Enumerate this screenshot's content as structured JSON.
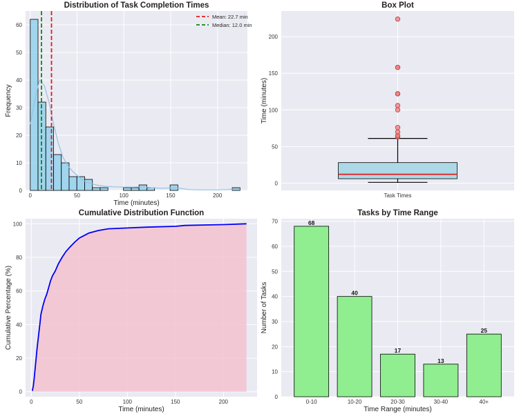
{
  "colors": {
    "plot_bg": "#eaeaf2",
    "grid": "#ffffff",
    "hist_fill": "#87ceeb",
    "kde": "#8fc3e6",
    "mean_line": "#e41a1c",
    "median_line": "#0a8a0a",
    "box_fill": "#add8e6",
    "box_median": "#e41a1c",
    "outlier": "#f08080",
    "cdf_line": "#0000ee",
    "cdf_fill": "#f4c2d0",
    "bar_fill": "#90ee90",
    "edge": "#000000"
  },
  "chart_data": [
    {
      "type": "bar",
      "title": "Distribution of Task Completion Times",
      "xlabel": "Time (minutes)",
      "ylabel": "Frequency",
      "xlim": [
        -5,
        232
      ],
      "ylim": [
        0,
        65
      ],
      "xticks": [
        0,
        50,
        100,
        150,
        200
      ],
      "yticks": [
        0,
        10,
        20,
        30,
        40,
        50,
        60
      ],
      "bins": [
        {
          "x0": 0,
          "x1": 8.3,
          "count": 62
        },
        {
          "x0": 8.3,
          "x1": 16.6,
          "count": 32
        },
        {
          "x0": 16.6,
          "x1": 24.9,
          "count": 23
        },
        {
          "x0": 24.9,
          "x1": 33.2,
          "count": 13
        },
        {
          "x0": 33.2,
          "x1": 41.5,
          "count": 10
        },
        {
          "x0": 41.5,
          "x1": 49.8,
          "count": 5
        },
        {
          "x0": 49.8,
          "x1": 58.1,
          "count": 5
        },
        {
          "x0": 58.1,
          "x1": 66.4,
          "count": 4
        },
        {
          "x0": 66.4,
          "x1": 74.7,
          "count": 1
        },
        {
          "x0": 74.7,
          "x1": 83.0,
          "count": 1
        },
        {
          "x0": 99.6,
          "x1": 107.9,
          "count": 1
        },
        {
          "x0": 107.9,
          "x1": 116.2,
          "count": 1
        },
        {
          "x0": 116.2,
          "x1": 124.5,
          "count": 2
        },
        {
          "x0": 124.5,
          "x1": 132.8,
          "count": 1
        },
        {
          "x0": 149.4,
          "x1": 157.7,
          "count": 2
        },
        {
          "x0": 215.8,
          "x1": 224.1,
          "count": 1
        }
      ],
      "kde": {
        "x": [
          0,
          5,
          10,
          15,
          20,
          25,
          30,
          35,
          40,
          45,
          50,
          55,
          60,
          70,
          80,
          90,
          100,
          110,
          120,
          130,
          140,
          150,
          160,
          170,
          180,
          190,
          200,
          210,
          220,
          224
        ],
        "y": [
          24,
          33,
          40,
          38,
          32,
          24,
          17,
          12,
          9,
          7,
          5.5,
          4,
          3,
          2,
          1.5,
          1.3,
          1.2,
          1.2,
          1.3,
          1,
          0.8,
          0.9,
          0.8,
          0.3,
          0.2,
          0.2,
          0.2,
          0.3,
          0.5,
          0.6
        ]
      },
      "mean": 22.7,
      "median": 12.0,
      "legend": [
        "Mean: 22.7 min",
        "Median: 12.0 min"
      ],
      "legend_position": "upper right",
      "grid": true
    },
    {
      "type": "box",
      "title": "Box Plot",
      "xlabel": "",
      "ylabel": "Time (minutes)",
      "category": "Task Times",
      "ylim": [
        -10,
        235
      ],
      "yticks": [
        0,
        50,
        100,
        150,
        200
      ],
      "whisker_low": 1,
      "q1": 6,
      "median": 12,
      "q3": 28,
      "whisker_high": 61,
      "outliers": [
        63,
        65,
        70,
        76,
        100,
        106,
        122,
        122,
        158,
        158,
        224
      ],
      "grid": true
    },
    {
      "type": "line",
      "title": "Cumulative Distribution Function",
      "xlabel": "Time (minutes)",
      "ylabel": "Cumulative Percentage (%)",
      "xlim": [
        -6,
        235
      ],
      "ylim": [
        -3,
        103
      ],
      "xticks": [
        0,
        50,
        100,
        150,
        200
      ],
      "yticks": [
        0,
        20,
        40,
        60,
        80,
        100
      ],
      "x": [
        1,
        2,
        3,
        4,
        5,
        6,
        7,
        8,
        9,
        10,
        12,
        14,
        16,
        18,
        20,
        22,
        25,
        28,
        32,
        36,
        40,
        45,
        50,
        55,
        60,
        70,
        80,
        100,
        120,
        150,
        160,
        200,
        224
      ],
      "y": [
        0.5,
        3,
        8,
        14,
        20,
        26,
        31,
        36,
        41,
        46,
        51,
        55,
        58,
        62,
        66,
        69,
        72,
        76,
        80,
        83.5,
        86,
        89,
        91.5,
        93,
        94.5,
        96,
        97,
        97.5,
        98,
        98.5,
        99,
        99.5,
        100
      ],
      "grid": true
    },
    {
      "type": "bar",
      "title": "Tasks by Time Range",
      "xlabel": "Time Range (minutes)",
      "ylabel": "Number of Tasks",
      "categories": [
        "0-10",
        "10-20",
        "20-30",
        "30-40",
        "40+"
      ],
      "values": [
        68,
        40,
        17,
        13,
        25
      ],
      "data_labels": [
        "68",
        "40",
        "17",
        "13",
        "25"
      ],
      "ylim": [
        0,
        71
      ],
      "yticks": [
        0,
        10,
        20,
        30,
        40,
        50,
        60,
        70
      ],
      "grid": true
    }
  ]
}
